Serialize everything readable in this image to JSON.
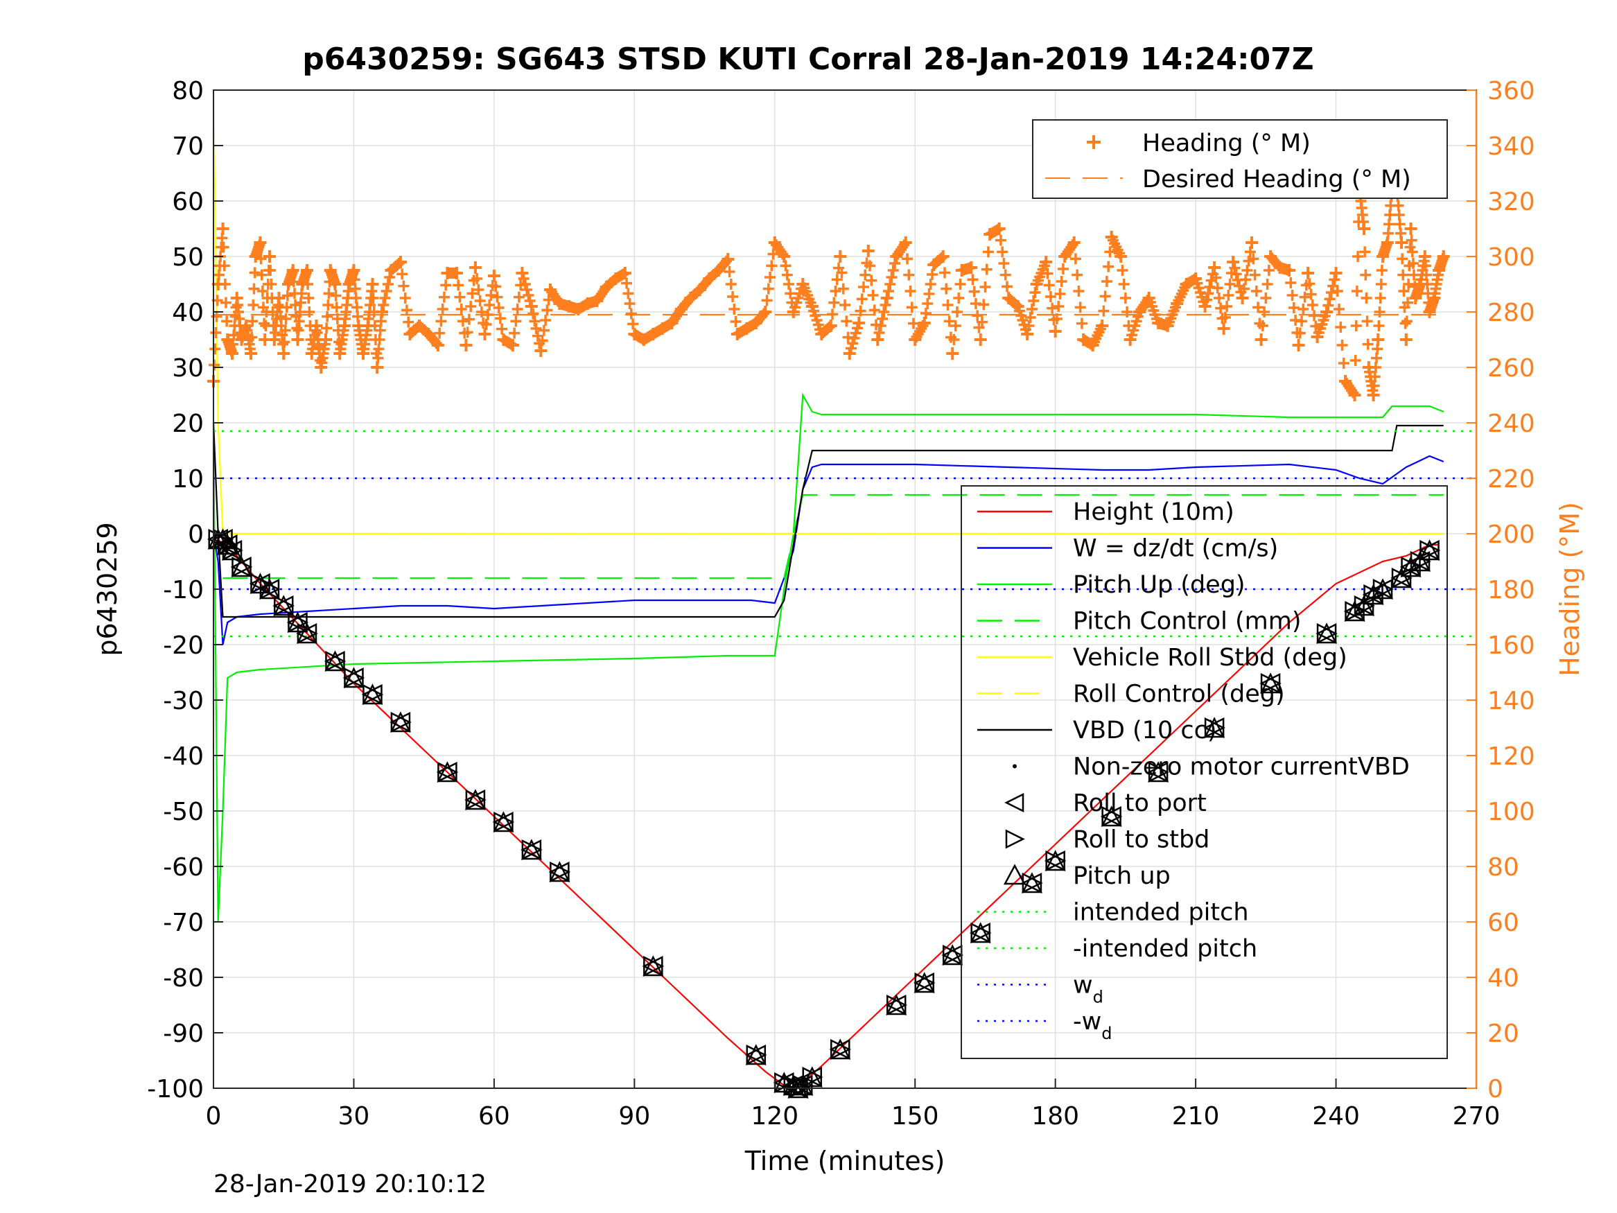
{
  "chart_data": {
    "type": "line",
    "title": "p6430259: SG643 STSD KUTI Corral 28-Jan-2019 14:24:07Z",
    "xlabel": "Time (minutes)",
    "ylabel_left": "p6430259",
    "ylabel_right": "Heading (°M)",
    "xlim": [
      0,
      270
    ],
    "ylim_left": [
      -100,
      80
    ],
    "ylim_right": [
      0,
      360
    ],
    "x_ticks": [
      "0",
      "30",
      "60",
      "90",
      "120",
      "150",
      "180",
      "210",
      "240",
      "270"
    ],
    "y_ticks_left": [
      "80",
      "70",
      "60",
      "50",
      "40",
      "30",
      "20",
      "10",
      "0",
      "-10",
      "-20",
      "-30",
      "-40",
      "-50",
      "-60",
      "-70",
      "-80",
      "-90",
      "-100"
    ],
    "y_ticks_right": [
      "360",
      "340",
      "320",
      "300",
      "280",
      "260",
      "240",
      "220",
      "200",
      "180",
      "160",
      "140",
      "120",
      "100",
      "80",
      "60",
      "40",
      "20",
      "0"
    ],
    "grid": true,
    "timestamp": "28-Jan-2019 20:10:12",
    "legend_heading": {
      "placement": "top-right",
      "entries": [
        "Heading (° M)",
        "Desired Heading (° M)"
      ]
    },
    "legend_main": {
      "placement": "right",
      "entries": [
        "Height (10m)",
        "W = dz/dt (cm/s)",
        "Pitch Up (deg)",
        "Pitch Control (mm)",
        "Vehicle Roll Stbd (deg)",
        "Roll Control (deg)",
        "VBD (10 cc)",
        "Non-zero motor currentVBD",
        "Roll to port",
        "Roll to stbd",
        "Pitch up",
        "intended pitch",
        "-intended pitch",
        "w",
        "-w"
      ],
      "subscript": "d"
    },
    "colors": {
      "height": "#ff0000",
      "w": "#0000ff",
      "pitch": "#00ee00",
      "roll": "#ffff00",
      "vbd": "#000000",
      "heading": "#ff7f1e"
    },
    "series": [
      {
        "name": "Height (10m)",
        "axis": "left",
        "style": "solid",
        "color": "#ff0000",
        "x": [
          0,
          1,
          2,
          5,
          10,
          20,
          30,
          40,
          50,
          60,
          70,
          80,
          95,
          110,
          118,
          122,
          124,
          126,
          130,
          140,
          150,
          160,
          170,
          180,
          190,
          200,
          210,
          220,
          230,
          240,
          250,
          255,
          260,
          262
        ],
        "y": [
          0,
          -1,
          -2,
          -4,
          -9,
          -18,
          -27,
          -35,
          -43,
          -51,
          -59,
          -67,
          -79,
          -91,
          -97,
          -99.5,
          -100,
          -99,
          -96,
          -88,
          -80,
          -72,
          -64,
          -56,
          -48,
          -40,
          -32,
          -24,
          -16,
          -9,
          -5,
          -4,
          -2,
          -2
        ]
      },
      {
        "name": "W = dz/dt (cm/s)",
        "axis": "left",
        "style": "solid",
        "color": "#0000ff",
        "x": [
          0,
          1,
          2,
          3,
          5,
          10,
          20,
          30,
          40,
          50,
          60,
          70,
          80,
          90,
          100,
          110,
          115,
          120,
          122,
          124,
          126,
          128,
          130,
          150,
          170,
          190,
          200,
          210,
          230,
          240,
          245,
          250,
          255,
          260,
          263
        ],
        "y": [
          0,
          -5,
          -20,
          -16,
          -15,
          -14.5,
          -14,
          -13.5,
          -13,
          -13,
          -13.5,
          -13,
          -12.5,
          -12,
          -12,
          -12,
          -12,
          -12.5,
          -8,
          -3,
          8,
          12,
          12.5,
          12.5,
          12,
          11.5,
          11.5,
          12,
          12.5,
          11.5,
          10,
          9,
          12,
          14,
          13
        ]
      },
      {
        "name": "Pitch Up (deg)",
        "axis": "left",
        "style": "solid",
        "color": "#00ee00",
        "x": [
          0,
          1,
          2,
          3,
          5,
          10,
          30,
          60,
          90,
          110,
          120,
          122,
          124,
          126,
          128,
          130,
          150,
          180,
          210,
          230,
          245,
          250,
          252,
          260,
          263
        ],
        "y": [
          20,
          -70,
          -50,
          -26,
          -25,
          -24.5,
          -23.5,
          -23,
          -22.5,
          -22,
          -22,
          -10,
          0,
          25,
          22,
          21.5,
          21.5,
          21.5,
          21.5,
          21,
          21,
          21,
          23,
          23,
          22
        ]
      },
      {
        "name": "Pitch Control (mm)",
        "axis": "left",
        "style": "dashed",
        "color": "#00ee00",
        "x": [
          2,
          122,
          126,
          263
        ],
        "y": [
          -8,
          -8,
          7,
          7
        ]
      },
      {
        "name": "Vehicle Roll Stbd (deg)",
        "axis": "left",
        "style": "solid",
        "color": "#ffff00",
        "x": [
          0,
          1,
          2,
          3,
          5,
          10,
          20,
          30,
          60,
          90,
          120,
          125,
          150,
          180,
          210,
          240,
          263
        ],
        "y": [
          80,
          20,
          0,
          0,
          0,
          0,
          0,
          0,
          0,
          0,
          0,
          0,
          0,
          0,
          0,
          0,
          0
        ]
      },
      {
        "name": "Roll Control (deg)",
        "axis": "left",
        "style": "dashed",
        "color": "#ffff00",
        "x": [
          0,
          263
        ],
        "y": [
          0,
          0
        ]
      },
      {
        "name": "VBD (10 cc)",
        "axis": "left",
        "style": "solid",
        "color": "#000000",
        "x": [
          0,
          1,
          2,
          30,
          60,
          90,
          120,
          122,
          126,
          128,
          150,
          180,
          210,
          240,
          252,
          253,
          263
        ],
        "y": [
          20,
          0,
          -15,
          -15,
          -15,
          -15,
          -15,
          -12,
          8,
          15,
          15,
          15,
          15,
          15,
          15,
          19.5,
          19.5
        ]
      },
      {
        "name": "intended pitch",
        "axis": "left",
        "style": "dotted",
        "color": "#00ee00",
        "x": [
          0,
          270
        ],
        "y": [
          18.5,
          18.5
        ]
      },
      {
        "name": "-intended pitch",
        "axis": "left",
        "style": "dotted",
        "color": "#00ee00",
        "x": [
          0,
          270
        ],
        "y": [
          -18.5,
          -18.5
        ]
      },
      {
        "name": "w",
        "axis": "left",
        "style": "dotted",
        "color": "#0000ff",
        "x": [
          0,
          270
        ],
        "y": [
          10,
          10
        ]
      },
      {
        "name": "-w",
        "axis": "left",
        "style": "dotted",
        "color": "#0000ff",
        "x": [
          0,
          270
        ],
        "y": [
          -10,
          -10
        ]
      },
      {
        "name": "Desired Heading (° M)",
        "axis": "right",
        "style": "dashed",
        "color": "#ff7f1e",
        "x": [
          0,
          263
        ],
        "y": [
          279,
          279
        ]
      },
      {
        "name": "Heading (° M)",
        "axis": "right",
        "style": "plus",
        "color": "#ff7f1e",
        "x": [
          0,
          1,
          2,
          3,
          4,
          5,
          6,
          7,
          8,
          9,
          10,
          11,
          12,
          13,
          14,
          15,
          16,
          17,
          18,
          19,
          20,
          21,
          22,
          23,
          24,
          25,
          26,
          27,
          28,
          29,
          30,
          31,
          32,
          33,
          34,
          35,
          36,
          38,
          40,
          42,
          44,
          46,
          48,
          50,
          52,
          54,
          56,
          58,
          60,
          62,
          64,
          66,
          68,
          70,
          72,
          74,
          76,
          78,
          80,
          82,
          84,
          86,
          88,
          90,
          92,
          94,
          96,
          98,
          100,
          102,
          104,
          106,
          108,
          110,
          112,
          114,
          116,
          118,
          120,
          122,
          124,
          126,
          128,
          130,
          132,
          134,
          136,
          138,
          140,
          142,
          144,
          146,
          148,
          150,
          152,
          154,
          156,
          158,
          160,
          162,
          164,
          166,
          168,
          170,
          172,
          174,
          176,
          178,
          180,
          182,
          184,
          186,
          188,
          190,
          192,
          194,
          196,
          198,
          200,
          202,
          204,
          206,
          208,
          210,
          212,
          214,
          216,
          218,
          220,
          222,
          224,
          226,
          228,
          230,
          232,
          234,
          236,
          238,
          240,
          242,
          244,
          245,
          246,
          247,
          248,
          249,
          250,
          251,
          252,
          253,
          254,
          255,
          256,
          257,
          258,
          259,
          260,
          261,
          262,
          263
        ],
        "y": [
          255,
          290,
          310,
          270,
          265,
          285,
          270,
          275,
          265,
          300,
          305,
          270,
          300,
          270,
          285,
          265,
          290,
          295,
          270,
          290,
          295,
          265,
          275,
          260,
          270,
          295,
          290,
          265,
          275,
          290,
          295,
          275,
          265,
          275,
          290,
          260,
          280,
          295,
          298,
          272,
          275,
          272,
          268,
          294,
          294,
          268,
          296,
          272,
          293,
          270,
          268,
          294,
          282,
          266,
          288,
          283,
          282,
          281,
          283,
          284,
          289,
          292,
          294,
          272,
          270,
          272,
          274,
          276,
          281,
          285,
          288,
          292,
          295,
          299,
          272,
          274,
          276,
          280,
          305,
          300,
          280,
          290,
          282,
          272,
          275,
          300,
          265,
          276,
          302,
          270,
          285,
          300,
          305,
          270,
          276,
          297,
          300,
          265,
          295,
          296,
          270,
          308,
          310,
          285,
          282,
          272,
          290,
          298,
          273,
          300,
          305,
          270,
          268,
          275,
          307,
          300,
          270,
          280,
          285,
          276,
          275,
          283,
          290,
          292,
          282,
          296,
          274,
          298,
          285,
          305,
          270,
          300,
          296,
          295,
          268,
          294,
          271,
          280,
          294,
          255,
          250,
          325,
          310,
          260,
          250,
          270,
          300,
          305,
          325,
          325,
          305,
          270,
          310,
          285,
          290,
          300,
          280,
          285,
          295,
          300
        ]
      }
    ],
    "markers": [
      {
        "name": "Roll to port / Roll to stbd / Pitch up",
        "x": [
          1,
          2,
          3,
          4,
          6,
          10,
          12,
          15,
          18,
          20,
          26,
          30,
          34,
          40,
          50,
          56,
          62,
          68,
          74,
          94,
          116,
          122,
          124,
          125,
          126,
          128,
          134,
          146,
          152,
          158,
          164,
          175,
          180,
          192,
          202,
          214,
          226,
          238,
          244,
          246,
          248,
          250,
          254,
          256,
          258,
          260
        ],
        "y": [
          -1,
          -1,
          -2,
          -3,
          -6,
          -9,
          -10,
          -13,
          -16,
          -18,
          -23,
          -26,
          -29,
          -34,
          -43,
          -48,
          -52,
          -57,
          -61,
          -78,
          -94,
          -99,
          -99.5,
          -100,
          -99.5,
          -98,
          -93,
          -85,
          -81,
          -76,
          -72,
          -63,
          -59,
          -51,
          -43,
          -35,
          -27,
          -18,
          -14,
          -13,
          -11,
          -10,
          -8,
          -6,
          -5,
          -3
        ]
      }
    ]
  }
}
